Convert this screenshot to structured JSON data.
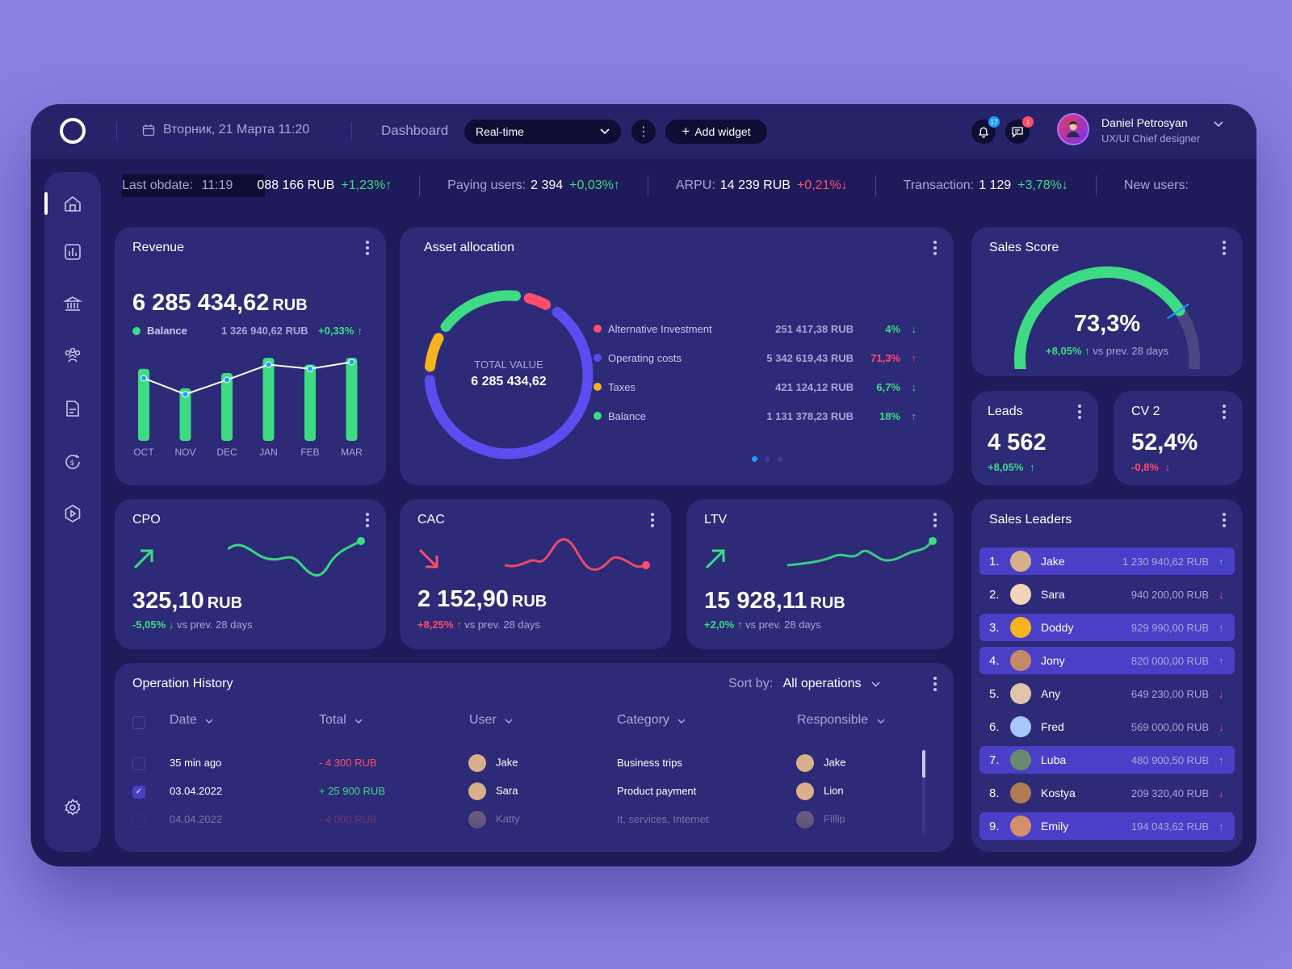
{
  "topbar": {
    "date": "Вторник,  21 Марта  11:20",
    "dashboard_label": "Dashboard",
    "mode_value": "Real-time",
    "add_widget_label": "Add widget",
    "notifications_count": "17",
    "messages_count": "1",
    "user_name": "Daniel Petrosyan",
    "user_role": "UX/UI Chief designer"
  },
  "ticker": {
    "last_update_label": "Last obdate:",
    "last_update_value": "11:19",
    "revenue_value": "088 166 RUB",
    "revenue_change": "+1,23%",
    "paying_label": "Paying users:",
    "paying_value": "2 394",
    "paying_change": "+0,03%",
    "arpu_label": "ARPU:",
    "arpu_value": "14 239 RUB",
    "arpu_change": "+0,21%",
    "transaction_label": "Transaction:",
    "transaction_value": "1 129",
    "transaction_change": "+3,78%",
    "new_users_label": "New users:"
  },
  "revenue": {
    "title": "Revenue",
    "value": "6 285 434,62",
    "unit": "RUB",
    "balance_label": "Balance",
    "balance_value": "1 326 940,62 RUB",
    "balance_change": "+0,33%",
    "months": [
      "OCT",
      "NOV",
      "DEC",
      "JAN",
      "FEB",
      "MAR"
    ],
    "bar_values": [
      85,
      62,
      80,
      98,
      90,
      98
    ],
    "line_values": [
      74,
      55,
      72,
      90,
      85,
      93
    ],
    "bar_max": 100
  },
  "asset": {
    "title": "Asset allocation",
    "total_label": "TOTAL VALUE",
    "total_value": "6 285 434,62",
    "items": [
      {
        "name": "Alternative Investment",
        "amount": "251 417,38 RUB",
        "pct": "4%",
        "dir": "↓",
        "color": "#ff4d6a",
        "pct_color": "#3ddc84"
      },
      {
        "name": "Operating costs",
        "amount": "5 342 619,43 RUB",
        "pct": "71,3%",
        "dir": "↑",
        "color": "#5b4ef0",
        "pct_color": "#ff4d6a"
      },
      {
        "name": "Taxes",
        "amount": "421 124,12 RUB",
        "pct": "6,7%",
        "dir": "↓",
        "color": "#f5b31e",
        "pct_color": "#3ddc84"
      },
      {
        "name": "Balance",
        "amount": "1 131 378,23 RUB",
        "pct": "18%",
        "dir": "↑",
        "color": "#3ddc84",
        "pct_color": "#3ddc84"
      }
    ],
    "donut_shares": [
      4,
      71.3,
      6.7,
      18
    ]
  },
  "sales_score": {
    "title": "Sales Score",
    "value": "73,3%",
    "score_fraction": 0.733,
    "change": "+8,05%",
    "change_dir": "↑",
    "compare": "vs prev. 28 days"
  },
  "leads": {
    "title": "Leads",
    "value": "4 562",
    "change": "+8,05%",
    "dir": "↑"
  },
  "cv2": {
    "title": "CV 2",
    "value": "52,4%",
    "change": "-0,8%",
    "dir": "↓"
  },
  "cpo": {
    "title": "CPO",
    "value": "325,10",
    "unit": "RUB",
    "change": "-5,05%",
    "dir": "↓",
    "compare": "vs prev. 28 days"
  },
  "cac": {
    "title": "CAC",
    "value": "2 152,90",
    "unit": "RUB",
    "change": "+8,25%",
    "dir": "↑",
    "compare": "vs prev. 28 days"
  },
  "ltv": {
    "title": "LTV",
    "value": "15 928,11",
    "unit": "RUB",
    "change": "+2,0%",
    "dir": "↑",
    "compare": "vs prev. 28 days"
  },
  "leaders": {
    "title": "Sales Leaders",
    "rows": [
      {
        "rank": "1.",
        "name": "Jake",
        "amount": "1 230 940,62 RUB",
        "dir": "↑",
        "up": true,
        "hl": true,
        "avatar": "#d9b08c"
      },
      {
        "rank": "2.",
        "name": "Sara",
        "amount": "940 200,00 RUB",
        "dir": "↓",
        "up": false,
        "hl": false,
        "avatar": "#f0d5b8"
      },
      {
        "rank": "3.",
        "name": "Doddy",
        "amount": "929 990,00 RUB",
        "dir": "↑",
        "up": true,
        "hl": true,
        "avatar": "#f5b31e"
      },
      {
        "rank": "4.",
        "name": "Jony",
        "amount": "820 000,00 RUB",
        "dir": "↑",
        "up": true,
        "hl": true,
        "avatar": "#c48a6a"
      },
      {
        "rank": "5.",
        "name": "Any",
        "amount": "649 230,00 RUB",
        "dir": "↓",
        "up": false,
        "hl": false,
        "avatar": "#e0c4a8"
      },
      {
        "rank": "6.",
        "name": "Fred",
        "amount": "569 000,00 RUB",
        "dir": "↓",
        "up": false,
        "hl": false,
        "avatar": "#a7c7ff"
      },
      {
        "rank": "7.",
        "name": "Luba",
        "amount": "480 900,50 RUB",
        "dir": "↑",
        "up": true,
        "hl": true,
        "avatar": "#6a8a70"
      },
      {
        "rank": "8.",
        "name": "Kostya",
        "amount": "209 320,40 RUB",
        "dir": "↓",
        "up": false,
        "hl": false,
        "avatar": "#b07a55"
      },
      {
        "rank": "9.",
        "name": "Emily",
        "amount": "194 043,62 RUB",
        "dir": "↑",
        "up": true,
        "hl": true,
        "avatar": "#d78f6a"
      }
    ]
  },
  "history": {
    "title": "Operation History",
    "sort_label": "Sort by:",
    "sort_value": "All operations",
    "columns": [
      "Date",
      "Total",
      "User",
      "Category",
      "Responsible"
    ],
    "rows": [
      {
        "date": "35 min ago",
        "total": "- 4 300 RUB",
        "neg": true,
        "user": "Jake",
        "category": "Business trips",
        "responsible": "Jake",
        "checked": false
      },
      {
        "date": "03.04.2022",
        "total": "+ 25 900 RUB",
        "neg": false,
        "user": "Sara",
        "category": "Product payment",
        "responsible": "Lion",
        "checked": true
      },
      {
        "date": "04.04.2022",
        "total": "- 4 000 RUB",
        "neg": true,
        "user": "Katty",
        "category": "It, services, Internet",
        "responsible": "Fillip",
        "checked": false
      }
    ]
  }
}
